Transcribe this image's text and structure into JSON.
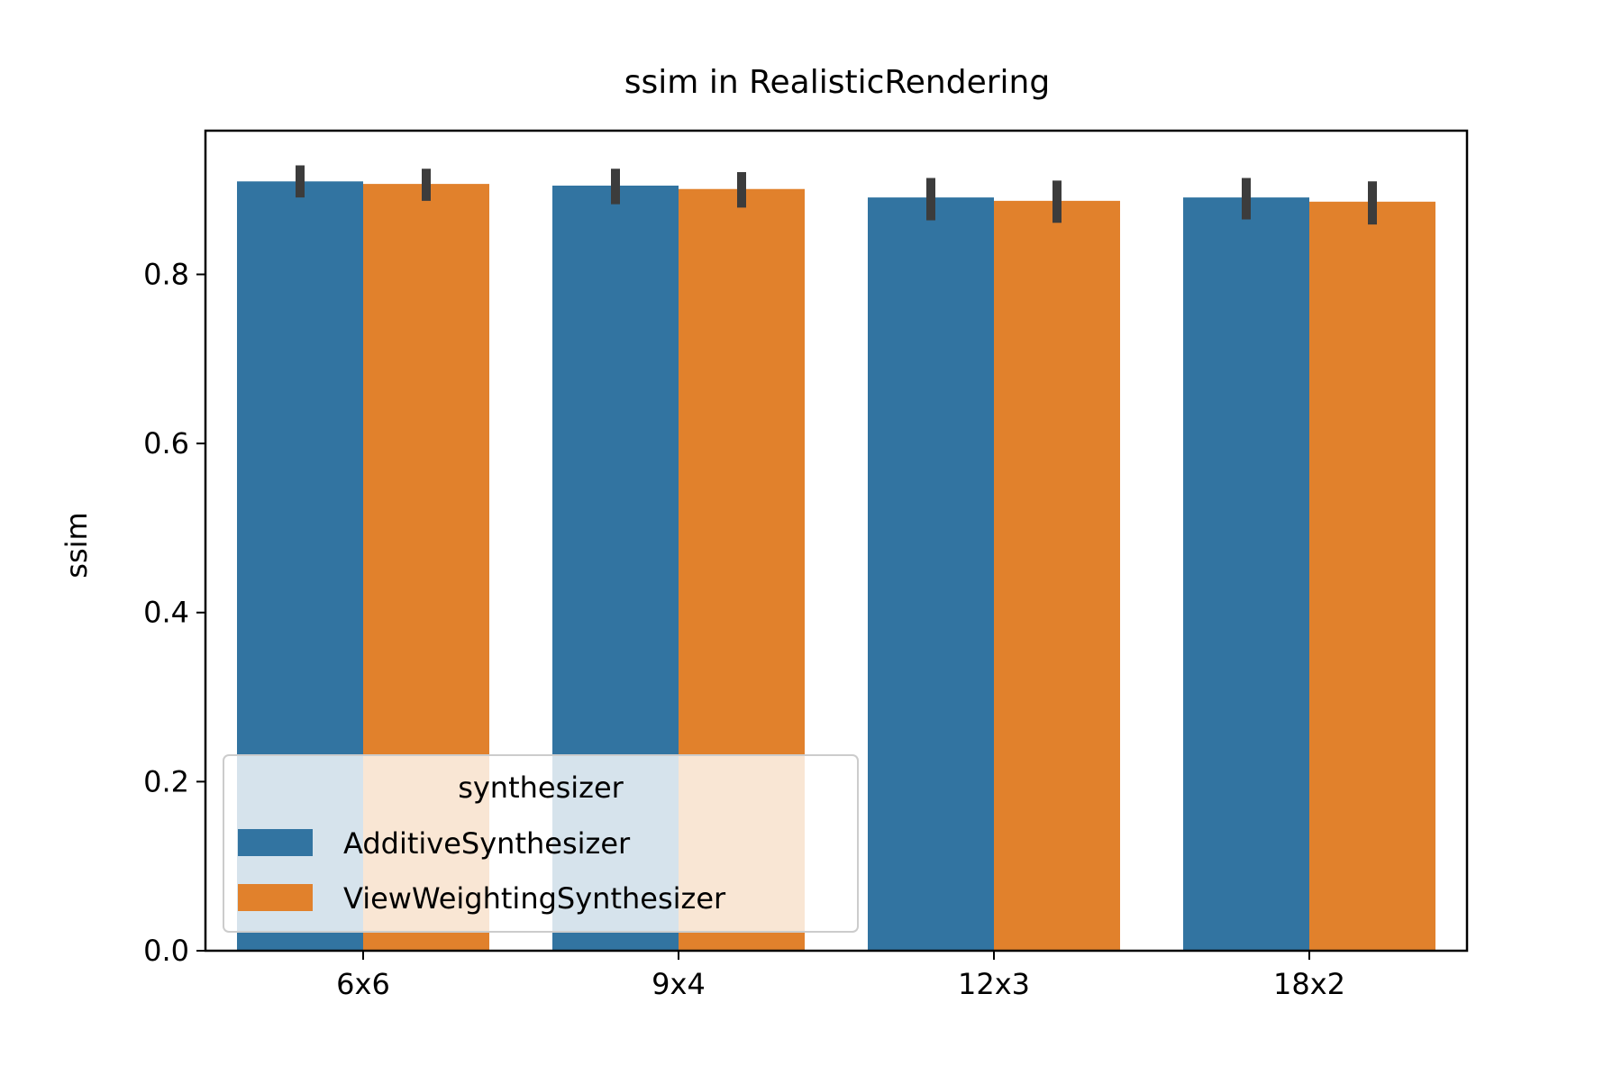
{
  "chart_data": {
    "type": "bar",
    "title": "ssim in RealisticRendering",
    "xlabel": "",
    "ylabel": "ssim",
    "categories": [
      "6x6",
      "9x4",
      "12x3",
      "18x2"
    ],
    "series": [
      {
        "name": "AdditiveSynthesizer",
        "color": "#3274a1",
        "values": [
          0.91,
          0.905,
          0.891,
          0.891
        ],
        "error_low": [
          0.891,
          0.883,
          0.864,
          0.865
        ],
        "error_high": [
          0.929,
          0.925,
          0.914,
          0.914
        ]
      },
      {
        "name": "ViewWeightingSynthesizer",
        "color": "#e1812c",
        "values": [
          0.907,
          0.901,
          0.887,
          0.886
        ],
        "error_low": [
          0.887,
          0.879,
          0.861,
          0.859
        ],
        "error_high": [
          0.925,
          0.921,
          0.911,
          0.91
        ]
      }
    ],
    "ylim": [
      0.0,
      0.97
    ],
    "yticks": [
      0.0,
      0.2,
      0.4,
      0.6,
      0.8
    ],
    "ytick_labels": [
      "0.0",
      "0.2",
      "0.4",
      "0.6",
      "0.8"
    ],
    "grid": false,
    "legend": {
      "title": "synthesizer",
      "placement": "lower-left"
    },
    "error_bar_color": "#3c3c3c"
  }
}
